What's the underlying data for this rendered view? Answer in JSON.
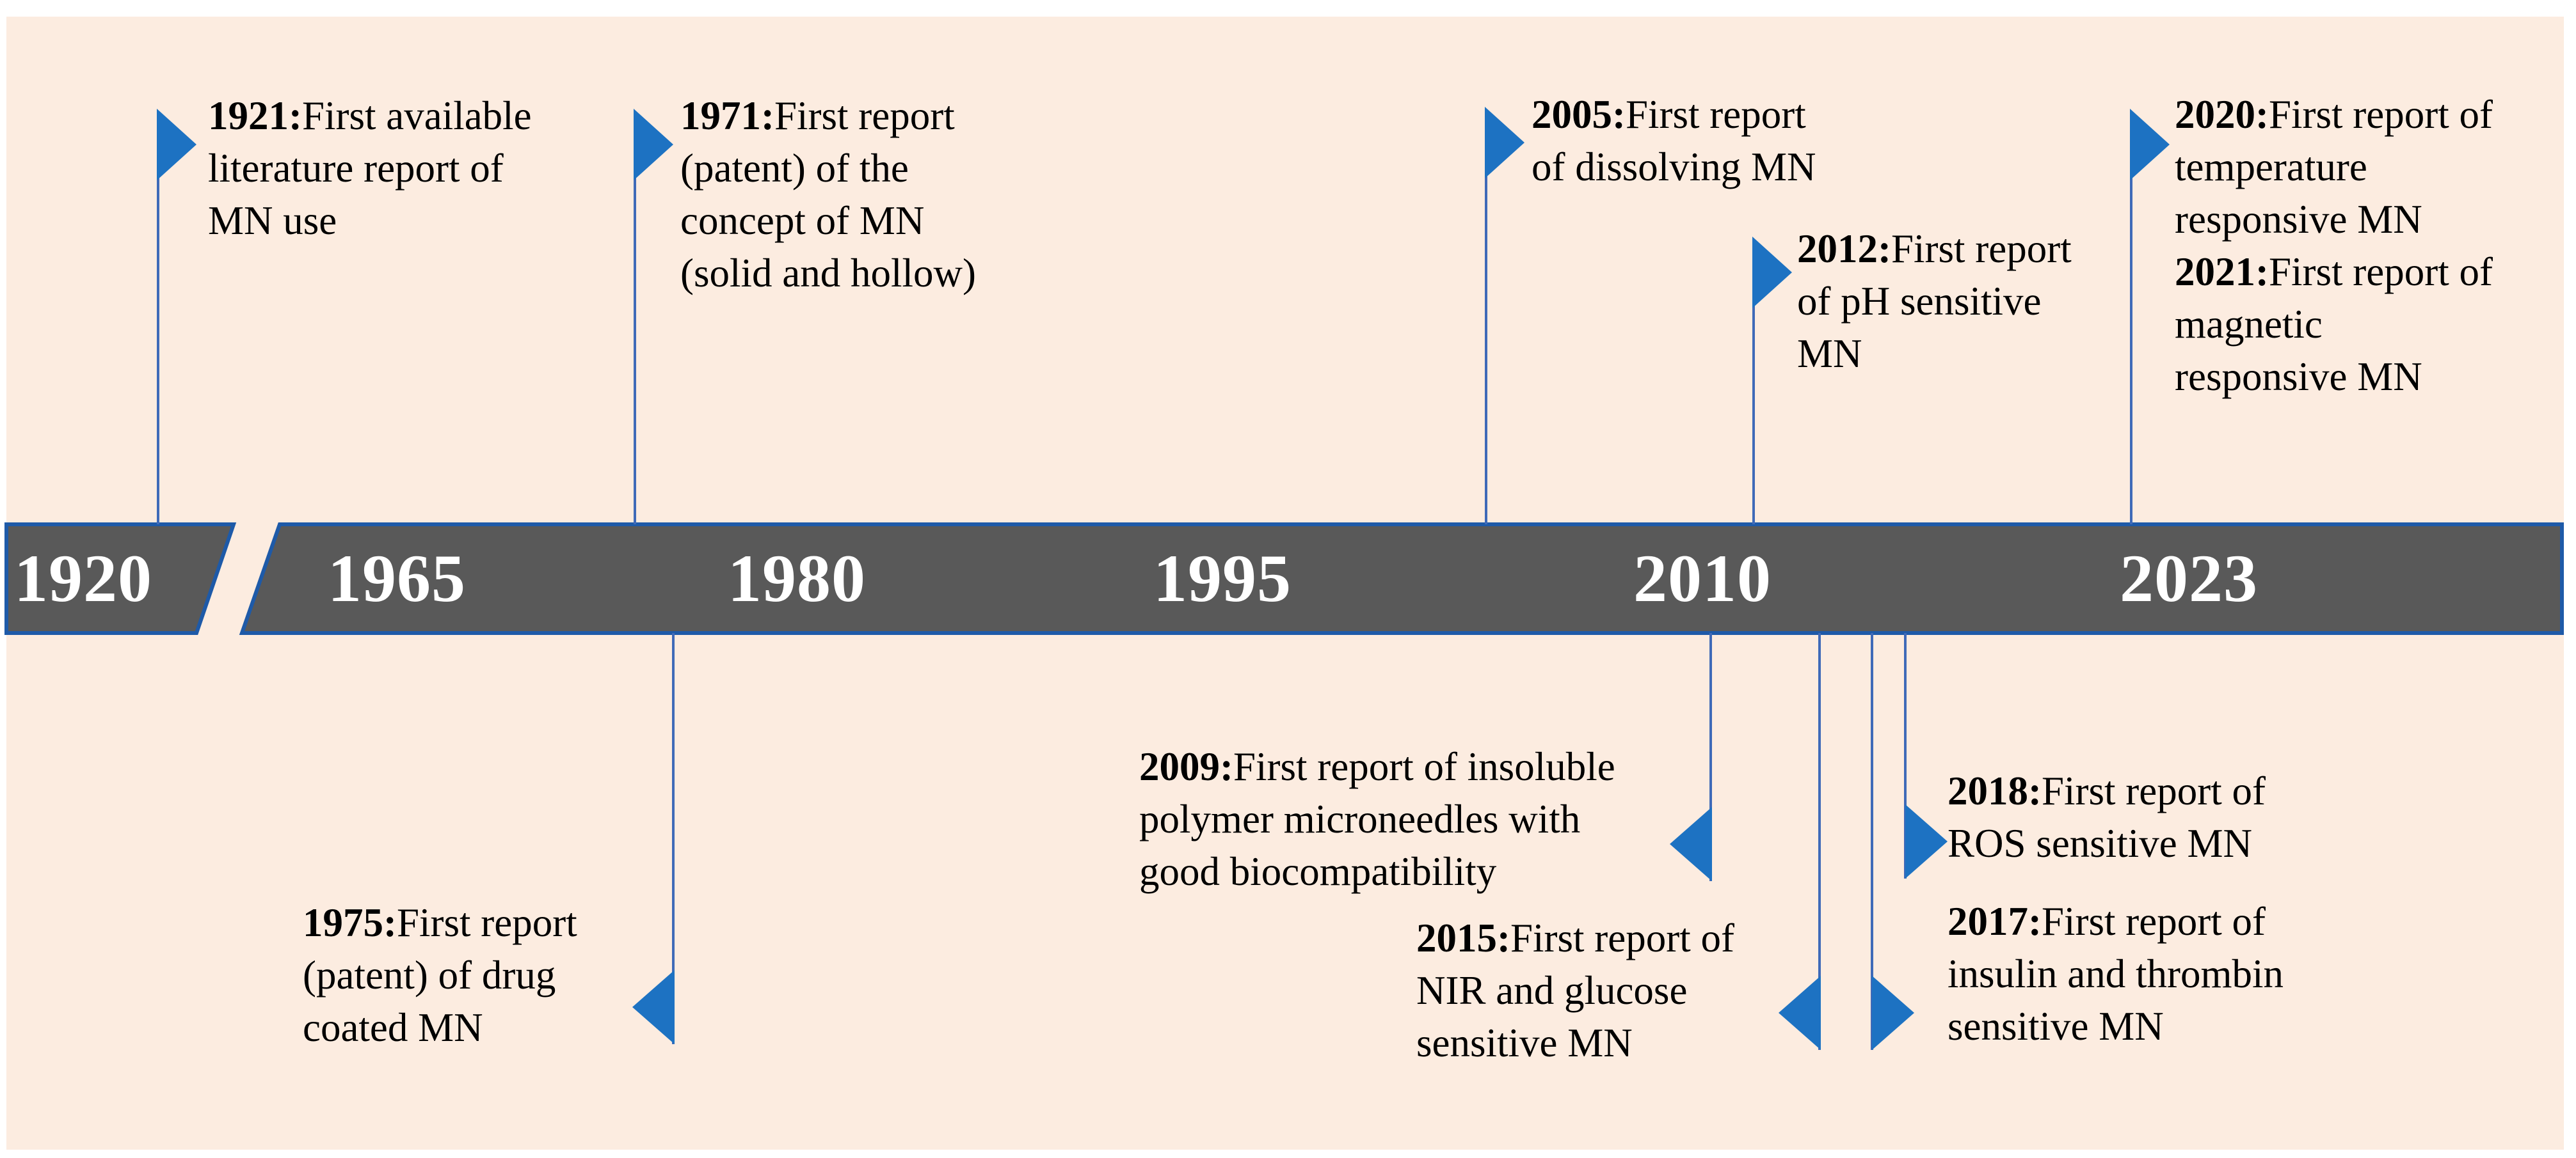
{
  "timeline": {
    "title_hint": "History of microneedle (MN) development timeline",
    "axis_years": [
      "1920",
      "1965",
      "1980",
      "1995",
      "2010",
      "2023"
    ],
    "events": [
      {
        "id": "1921",
        "year_label": "1921:",
        "side": "above",
        "lines": [
          "First available",
          "literature report of",
          "MN use"
        ]
      },
      {
        "id": "1971",
        "year_label": "1971:",
        "side": "above",
        "lines": [
          "First report",
          "(patent) of the",
          "concept of MN",
          "(solid and hollow)"
        ]
      },
      {
        "id": "1975",
        "year_label": "1975:",
        "side": "below",
        "lines": [
          "First report",
          "(patent) of drug",
          "coated MN"
        ]
      },
      {
        "id": "2005",
        "year_label": "2005:",
        "side": "above",
        "lines": [
          "First report",
          "of dissolving MN"
        ]
      },
      {
        "id": "2009",
        "year_label": "2009:",
        "side": "below",
        "lines": [
          "First report of insoluble",
          "polymer microneedles with",
          "good biocompatibility"
        ]
      },
      {
        "id": "2012",
        "year_label": "2012:",
        "side": "above",
        "lines": [
          "First report",
          "of pH sensitive",
          "MN"
        ]
      },
      {
        "id": "2015",
        "year_label": "2015:",
        "side": "below",
        "lines": [
          "First report of",
          "NIR and glucose",
          "sensitive MN"
        ]
      },
      {
        "id": "2017",
        "year_label": "2017:",
        "side": "below",
        "lines": [
          "First report of",
          "insulin and thrombin",
          "sensitive MN"
        ]
      },
      {
        "id": "2018",
        "year_label": "2018:",
        "side": "below",
        "lines": [
          "First report of",
          "ROS sensitive MN"
        ]
      },
      {
        "id": "2020",
        "year_label": "2020:",
        "side": "above",
        "lines": [
          "First report of",
          "temperature",
          "responsive MN"
        ]
      },
      {
        "id": "2021",
        "year_label": "2021:",
        "side": "above",
        "lines": [
          "First report of",
          "magnetic",
          "responsive MN"
        ]
      }
    ],
    "colors": {
      "background": "#fcece0",
      "bar_fill": "#595959",
      "bar_border": "#1e5aa8",
      "marker_blue": "#1d72c2",
      "line_blue": "#3f6ab8",
      "year_text": "#ffffff",
      "event_text": "#000000"
    }
  }
}
